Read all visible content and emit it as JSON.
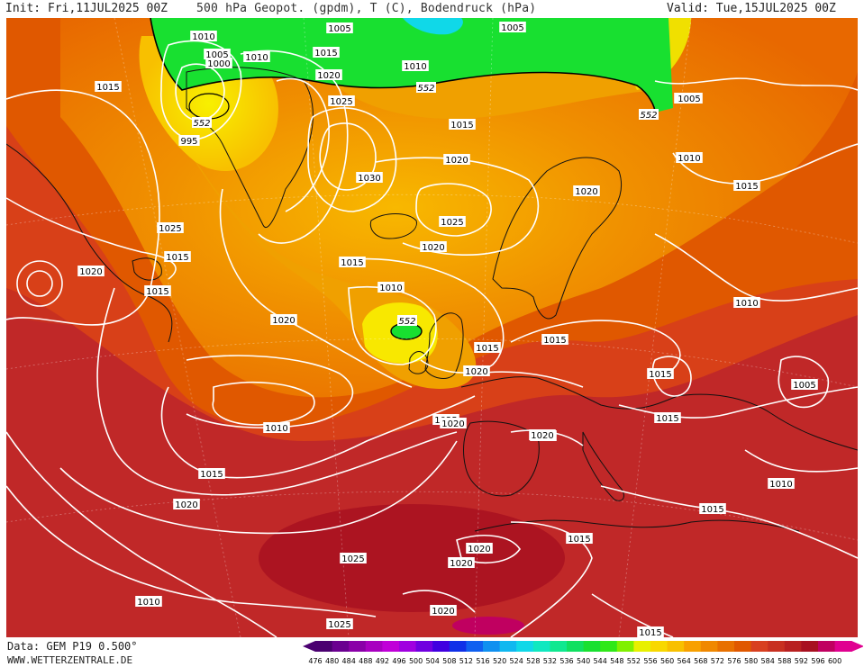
{
  "header": {
    "init": "Init: Fri,11JUL2025 00Z",
    "title": "500 hPa Geopot. (gpdm), T (C), Bodendruck (hPa)",
    "valid": "Valid: Tue,15JUL2025 00Z"
  },
  "footer": {
    "data_source": "Data: GEM P19 0.500°",
    "website": "WWW.WETTERZENTRALE.DE"
  },
  "color_scale": {
    "ticks": [
      "476",
      "480",
      "484",
      "488",
      "492",
      "496",
      "500",
      "504",
      "508",
      "512",
      "516",
      "520",
      "524",
      "528",
      "532",
      "536",
      "540",
      "544",
      "548",
      "552",
      "556",
      "560",
      "564",
      "568",
      "572",
      "576",
      "580",
      "584",
      "588",
      "592",
      "596",
      "600"
    ],
    "colors": [
      "#4a0070",
      "#6a0090",
      "#8a00a8",
      "#a800c0",
      "#c000d8",
      "#a000e0",
      "#7000e0",
      "#4000e0",
      "#1030e8",
      "#1060f0",
      "#1090f0",
      "#10b8f0",
      "#10d8e8",
      "#10e8c0",
      "#10e890",
      "#10e060",
      "#18e030",
      "#30e818",
      "#80f000",
      "#e8f000",
      "#f8d800",
      "#f8c000",
      "#f8a000",
      "#f08800",
      "#e87000",
      "#e05800",
      "#d84020",
      "#c83020",
      "#b82020",
      "#a81020",
      "#c00060",
      "#e00090"
    ]
  },
  "map_labels": {
    "isobars": [
      "1010",
      "1005",
      "1000",
      "1015",
      "995",
      "1005",
      "1010",
      "1015",
      "1020",
      "1025",
      "1030",
      "1005",
      "1010",
      "1015",
      "1020",
      "1025",
      "1020",
      "1020",
      "1015",
      "1010",
      "1005",
      "1010",
      "1015",
      "1020",
      "1015",
      "1020",
      "1025",
      "1020",
      "1015",
      "1010",
      "1015",
      "1020",
      "1015",
      "1020",
      "1025",
      "1010",
      "1015",
      "1005",
      "1015",
      "1010",
      "1015",
      "1020",
      "1020",
      "1025",
      "1020",
      "1025",
      "1020",
      "1015",
      "1015",
      "1010",
      "1005",
      "1020",
      "1015"
    ],
    "geopotential_552": [
      "552",
      "552",
      "552",
      "552"
    ]
  }
}
